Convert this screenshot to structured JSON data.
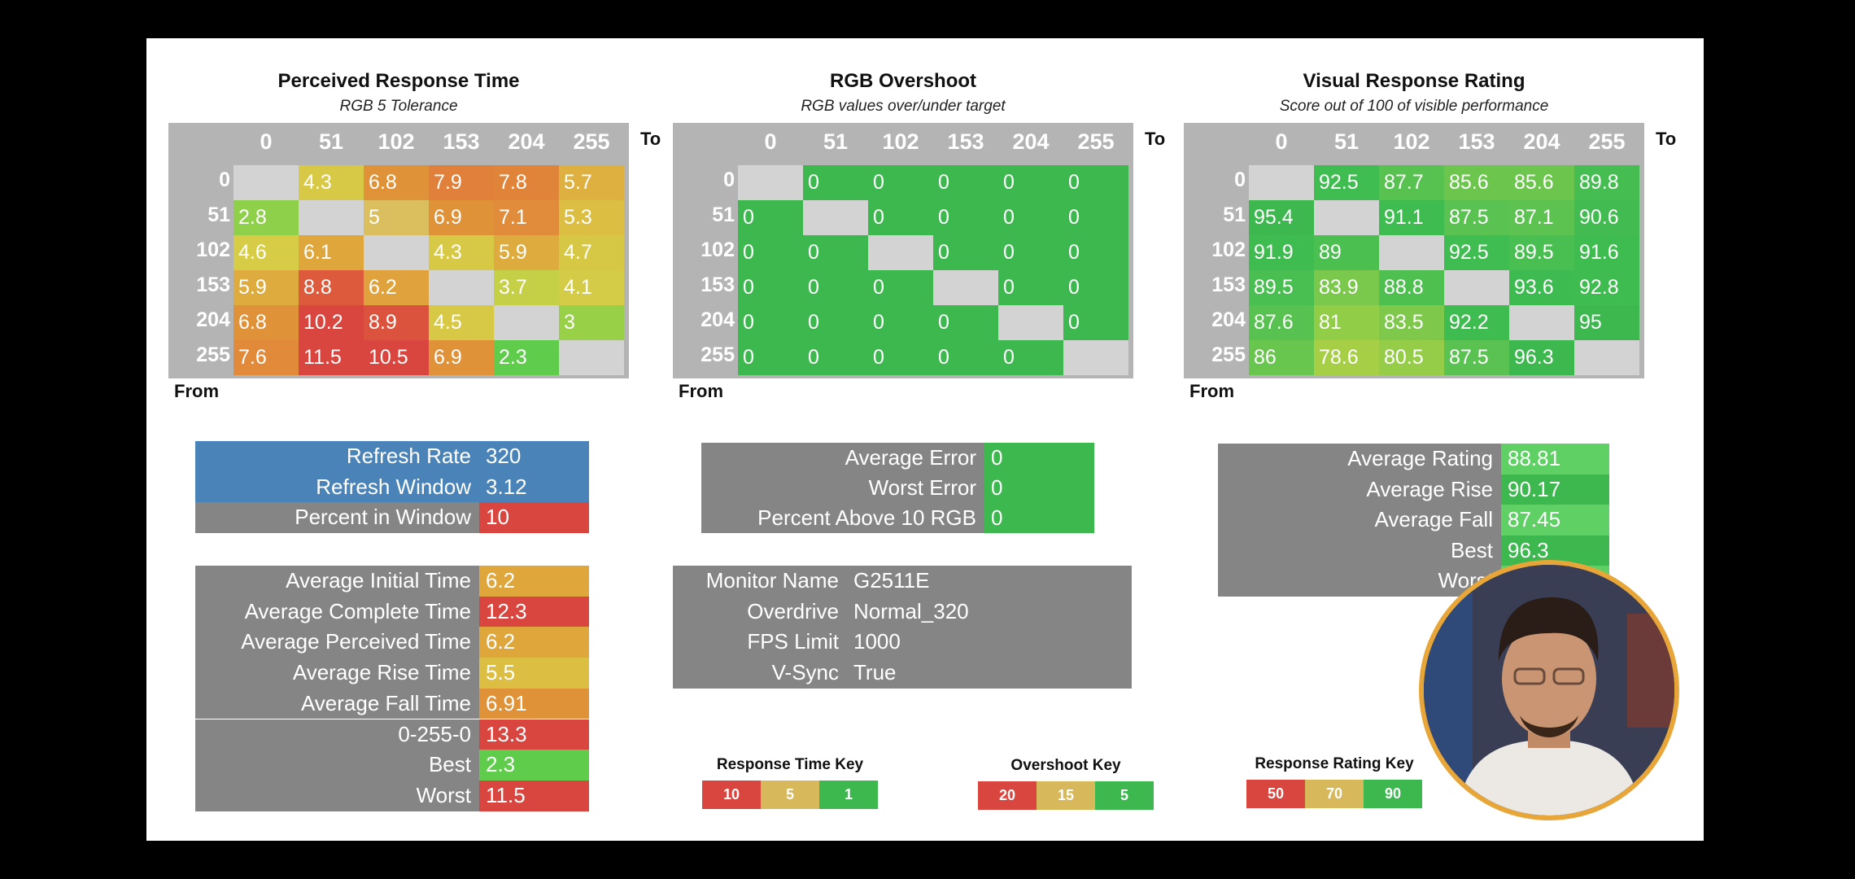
{
  "colors": {
    "grey": "#b4b4b4",
    "panel_grey": "#858585",
    "blue": "#4a83b8",
    "green": "#3cb84f",
    "bright_green": "#5fd063",
    "red": "#d9463f",
    "orange": "#e3923a",
    "yellow": "#d9cc45",
    "tan": "#d7b85b",
    "avatar_ring": "#e8a638"
  },
  "matrices": [
    {
      "title": "Perceived Response Time",
      "subtitle": "RGB 5 Tolerance",
      "to_label": "To",
      "from_label": "From",
      "headers": [
        "0",
        "51",
        "102",
        "153",
        "204",
        "255"
      ],
      "rows": [
        {
          "label": "0",
          "cells": [
            {
              "v": "",
              "c": "#d3d3d3"
            },
            {
              "v": "4.3",
              "c": "#d7c845"
            },
            {
              "v": "6.8",
              "c": "#e09238"
            },
            {
              "v": "7.9",
              "c": "#e0803a"
            },
            {
              "v": "7.8",
              "c": "#e0843a"
            },
            {
              "v": "5.7",
              "c": "#deb040"
            }
          ]
        },
        {
          "label": "51",
          "cells": [
            {
              "v": "2.8",
              "c": "#8ed04a"
            },
            {
              "v": "",
              "c": "#d3d3d3"
            },
            {
              "v": "5",
              "c": "#dbbf5e"
            },
            {
              "v": "6.9",
              "c": "#e09238"
            },
            {
              "v": "7.1",
              "c": "#e08c3a"
            },
            {
              "v": "5.3",
              "c": "#dcbe42"
            }
          ]
        },
        {
          "label": "102",
          "cells": [
            {
              "v": "4.6",
              "c": "#d6cc45"
            },
            {
              "v": "6.1",
              "c": "#dfa63c"
            },
            {
              "v": "",
              "c": "#d3d3d3"
            },
            {
              "v": "4.3",
              "c": "#d7c845"
            },
            {
              "v": "5.9",
              "c": "#deac3e"
            },
            {
              "v": "4.7",
              "c": "#d6c745"
            }
          ]
        },
        {
          "label": "153",
          "cells": [
            {
              "v": "5.9",
              "c": "#deac3e"
            },
            {
              "v": "8.8",
              "c": "#dd5a3c"
            },
            {
              "v": "6.2",
              "c": "#dfa23c"
            },
            {
              "v": "",
              "c": "#d3d3d3"
            },
            {
              "v": "3.7",
              "c": "#c6d046"
            },
            {
              "v": "4.1",
              "c": "#d4cc46"
            }
          ]
        },
        {
          "label": "204",
          "cells": [
            {
              "v": "6.8",
              "c": "#e09238"
            },
            {
              "v": "10.2",
              "c": "#d9463f"
            },
            {
              "v": "8.9",
              "c": "#dc533d"
            },
            {
              "v": "4.5",
              "c": "#d7c845"
            },
            {
              "v": "",
              "c": "#d3d3d3"
            },
            {
              "v": "3",
              "c": "#98d048"
            }
          ]
        },
        {
          "label": "255",
          "cells": [
            {
              "v": "7.6",
              "c": "#e08a3a"
            },
            {
              "v": "11.5",
              "c": "#d9463f"
            },
            {
              "v": "10.5",
              "c": "#d9463f"
            },
            {
              "v": "6.9",
              "c": "#e09238"
            },
            {
              "v": "2.3",
              "c": "#5fcc4c"
            },
            {
              "v": "",
              "c": "#d3d3d3"
            }
          ]
        }
      ]
    },
    {
      "title": "RGB Overshoot",
      "subtitle": "RGB values over/under target",
      "to_label": "To",
      "from_label": "From",
      "headers": [
        "0",
        "51",
        "102",
        "153",
        "204",
        "255"
      ],
      "rows": [
        {
          "label": "0",
          "cells": [
            {
              "v": "",
              "c": "#d3d3d3"
            },
            {
              "v": "0",
              "c": "#3cb84f"
            },
            {
              "v": "0",
              "c": "#3cb84f"
            },
            {
              "v": "0",
              "c": "#3cb84f"
            },
            {
              "v": "0",
              "c": "#3cb84f"
            },
            {
              "v": "0",
              "c": "#3cb84f"
            }
          ]
        },
        {
          "label": "51",
          "cells": [
            {
              "v": "0",
              "c": "#3cb84f"
            },
            {
              "v": "",
              "c": "#d3d3d3"
            },
            {
              "v": "0",
              "c": "#3cb84f"
            },
            {
              "v": "0",
              "c": "#3cb84f"
            },
            {
              "v": "0",
              "c": "#3cb84f"
            },
            {
              "v": "0",
              "c": "#3cb84f"
            }
          ]
        },
        {
          "label": "102",
          "cells": [
            {
              "v": "0",
              "c": "#3cb84f"
            },
            {
              "v": "0",
              "c": "#3cb84f"
            },
            {
              "v": "",
              "c": "#d3d3d3"
            },
            {
              "v": "0",
              "c": "#3cb84f"
            },
            {
              "v": "0",
              "c": "#3cb84f"
            },
            {
              "v": "0",
              "c": "#3cb84f"
            }
          ]
        },
        {
          "label": "153",
          "cells": [
            {
              "v": "0",
              "c": "#3cb84f"
            },
            {
              "v": "0",
              "c": "#3cb84f"
            },
            {
              "v": "0",
              "c": "#3cb84f"
            },
            {
              "v": "",
              "c": "#d3d3d3"
            },
            {
              "v": "0",
              "c": "#3cb84f"
            },
            {
              "v": "0",
              "c": "#3cb84f"
            }
          ]
        },
        {
          "label": "204",
          "cells": [
            {
              "v": "0",
              "c": "#3cb84f"
            },
            {
              "v": "0",
              "c": "#3cb84f"
            },
            {
              "v": "0",
              "c": "#3cb84f"
            },
            {
              "v": "0",
              "c": "#3cb84f"
            },
            {
              "v": "",
              "c": "#d3d3d3"
            },
            {
              "v": "0",
              "c": "#3cb84f"
            }
          ]
        },
        {
          "label": "255",
          "cells": [
            {
              "v": "0",
              "c": "#3cb84f"
            },
            {
              "v": "0",
              "c": "#3cb84f"
            },
            {
              "v": "0",
              "c": "#3cb84f"
            },
            {
              "v": "0",
              "c": "#3cb84f"
            },
            {
              "v": "0",
              "c": "#3cb84f"
            },
            {
              "v": "",
              "c": "#d3d3d3"
            }
          ]
        }
      ]
    },
    {
      "title": "Visual Response Rating",
      "subtitle": "Score out of 100 of visible performance",
      "to_label": "To",
      "from_label": "From",
      "headers": [
        "0",
        "51",
        "102",
        "153",
        "204",
        "255"
      ],
      "rows": [
        {
          "label": "0",
          "cells": [
            {
              "v": "",
              "c": "#d3d3d3"
            },
            {
              "v": "92.5",
              "c": "#40bd50"
            },
            {
              "v": "87.7",
              "c": "#58c250"
            },
            {
              "v": "85.6",
              "c": "#6cc64e"
            },
            {
              "v": "85.6",
              "c": "#6cc64e"
            },
            {
              "v": "89.8",
              "c": "#45bd50"
            }
          ]
        },
        {
          "label": "51",
          "cells": [
            {
              "v": "95.4",
              "c": "#3cb84f"
            },
            {
              "v": "",
              "c": "#d3d3d3"
            },
            {
              "v": "91.1",
              "c": "#3fbc50"
            },
            {
              "v": "87.5",
              "c": "#5ac250"
            },
            {
              "v": "87.1",
              "c": "#5cc250"
            },
            {
              "v": "90.6",
              "c": "#42bc50"
            }
          ]
        },
        {
          "label": "102",
          "cells": [
            {
              "v": "91.9",
              "c": "#3fbc50"
            },
            {
              "v": "89",
              "c": "#4bbf50"
            },
            {
              "v": "",
              "c": "#d3d3d3"
            },
            {
              "v": "92.5",
              "c": "#40bd50"
            },
            {
              "v": "89.5",
              "c": "#48bf50"
            },
            {
              "v": "91.6",
              "c": "#3fbc50"
            }
          ]
        },
        {
          "label": "153",
          "cells": [
            {
              "v": "89.5",
              "c": "#48bf50"
            },
            {
              "v": "83.9",
              "c": "#7ac84c"
            },
            {
              "v": "88.8",
              "c": "#4ec050"
            },
            {
              "v": "",
              "c": "#d3d3d3"
            },
            {
              "v": "93.6",
              "c": "#3dbb50"
            },
            {
              "v": "92.8",
              "c": "#3ebc50"
            }
          ]
        },
        {
          "label": "204",
          "cells": [
            {
              "v": "87.6",
              "c": "#58c250"
            },
            {
              "v": "81",
              "c": "#92cd48"
            },
            {
              "v": "83.5",
              "c": "#7ec94c"
            },
            {
              "v": "92.2",
              "c": "#3fbc50"
            },
            {
              "v": "",
              "c": "#d3d3d3"
            },
            {
              "v": "95",
              "c": "#3cb84f"
            }
          ]
        },
        {
          "label": "255",
          "cells": [
            {
              "v": "86",
              "c": "#68c54e"
            },
            {
              "v": "78.6",
              "c": "#a6cf46"
            },
            {
              "v": "80.5",
              "c": "#96cd48"
            },
            {
              "v": "87.5",
              "c": "#5ac250"
            },
            {
              "v": "96.3",
              "c": "#3cb84f"
            },
            {
              "v": "",
              "c": "#d3d3d3"
            }
          ]
        }
      ]
    }
  ],
  "refresh_box": {
    "rows": [
      {
        "label": "Refresh Rate",
        "value": "320",
        "label_color": "#4a83b8",
        "value_color": "#4a83b8"
      },
      {
        "label": "Refresh Window",
        "value": "3.12",
        "label_color": "#4a83b8",
        "value_color": "#4a83b8"
      },
      {
        "label": "Percent in Window",
        "value": "10",
        "label_color": "#858585",
        "value_color": "#d9463f"
      }
    ]
  },
  "timing_box": {
    "rows": [
      {
        "label": "Average Initial Time",
        "value": "6.2",
        "value_color": "#dfa63c"
      },
      {
        "label": "Average Complete Time",
        "value": "12.3",
        "value_color": "#d9463f"
      },
      {
        "label": "Average Perceived Time",
        "value": "6.2",
        "value_color": "#dfa63c"
      },
      {
        "label": "Average Rise Time",
        "value": "5.5",
        "value_color": "#dcbe42"
      },
      {
        "label": "Average Fall Time",
        "value": "6.91",
        "value_color": "#e09238"
      },
      {
        "label": "0-255-0",
        "value": "13.3",
        "value_color": "#d9463f"
      },
      {
        "label": "Best",
        "value": "2.3",
        "value_color": "#5fcc4c"
      },
      {
        "label": "Worst",
        "value": "11.5",
        "value_color": "#d9463f"
      }
    ]
  },
  "error_box": {
    "rows": [
      {
        "label": "Average Error",
        "value": "0",
        "value_color": "#3cb84f"
      },
      {
        "label": "Worst Error",
        "value": "0",
        "value_color": "#3cb84f"
      },
      {
        "label": "Percent Above 10 RGB",
        "value": "0",
        "value_color": "#3cb84f"
      }
    ]
  },
  "monitor_box": {
    "rows": [
      {
        "label": "Monitor Name",
        "value": "G2511E"
      },
      {
        "label": "Overdrive",
        "value": "Normal_320"
      },
      {
        "label": "FPS Limit",
        "value": "1000"
      },
      {
        "label": "V-Sync",
        "value": "True"
      }
    ]
  },
  "rating_box": {
    "rows": [
      {
        "label": "Average Rating",
        "value": "88.81",
        "value_color": "#5fd063"
      },
      {
        "label": "Average Rise",
        "value": "90.17",
        "value_color": "#3cb84f"
      },
      {
        "label": "Average Fall",
        "value": "87.45",
        "value_color": "#5fd063"
      },
      {
        "label": "Best",
        "value": "96.3",
        "value_color": "#3cb84f"
      },
      {
        "label": "Worst",
        "value": "",
        "value_color": "#5fd063"
      }
    ]
  },
  "keys": [
    {
      "title": "Response Time Key",
      "items": [
        {
          "v": "10",
          "c": "#d9463f"
        },
        {
          "v": "5",
          "c": "#d7b85b"
        },
        {
          "v": "1",
          "c": "#3cb84f"
        }
      ]
    },
    {
      "title": "Overshoot Key",
      "items": [
        {
          "v": "20",
          "c": "#d9463f"
        },
        {
          "v": "15",
          "c": "#d7b85b"
        },
        {
          "v": "5",
          "c": "#3cb84f"
        }
      ]
    },
    {
      "title": "Response Rating Key",
      "items": [
        {
          "v": "50",
          "c": "#d9463f"
        },
        {
          "v": "70",
          "c": "#d7b85b"
        },
        {
          "v": "90",
          "c": "#3cb84f"
        }
      ]
    }
  ]
}
